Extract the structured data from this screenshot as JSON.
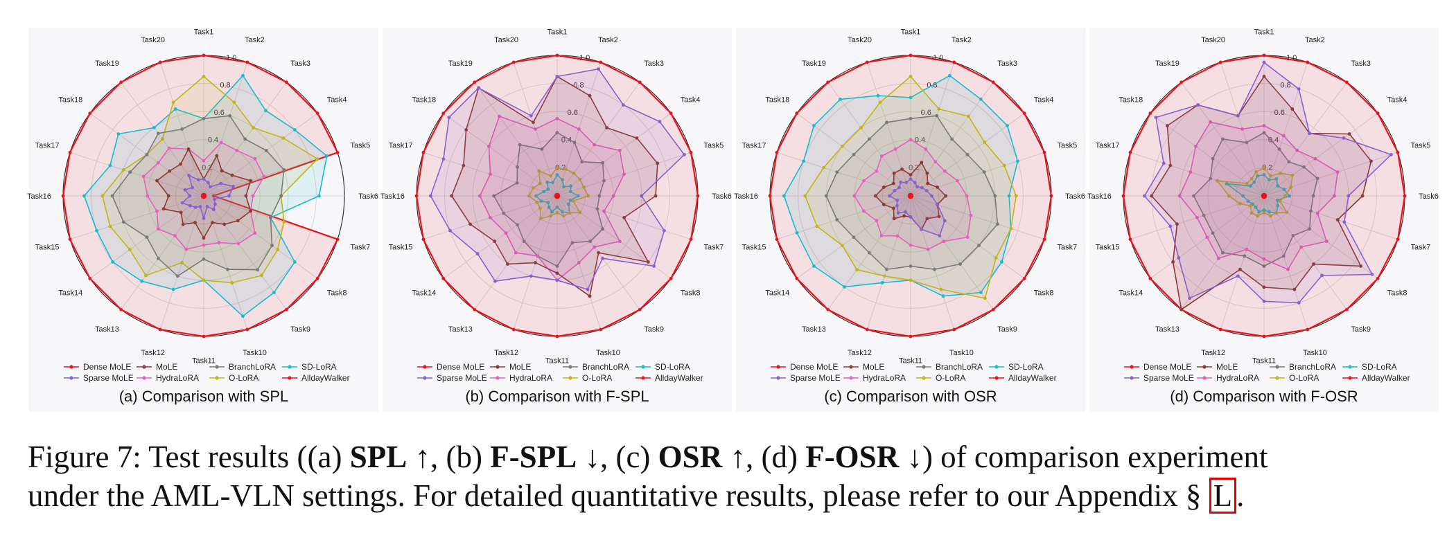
{
  "tasks": [
    "Task1",
    "Task2",
    "Task3",
    "Task4",
    "Task5",
    "Task6",
    "Task7",
    "Task8",
    "Task9",
    "Task10",
    "Task11",
    "Task12",
    "Task13",
    "Task14",
    "Task15",
    "Task16",
    "Task17",
    "Task18",
    "Task19",
    "Task20"
  ],
  "rticks": [
    "0.2",
    "0.4",
    "0.6",
    "0.8",
    "1.0"
  ],
  "colors": {
    "Dense MoLE": "#e8141d",
    "Sparse MoLE": "#8a5fcf",
    "MoLE": "#8b3a34",
    "HydraLoRA": "#e85fc0",
    "BranchLoRA": "#7a7a7a",
    "O-LoRA": "#c2b41c",
    "SD-LoRA": "#18bcd0",
    "AlldayWalker": "#e8141d"
  },
  "legend": [
    "Dense MoLE",
    "MoLE",
    "BranchLoRA",
    "SD-LoRA",
    "Sparse MoLE",
    "HydraLoRA",
    "O-LoRA",
    "AlldayWalker"
  ],
  "chart_data": [
    {
      "type": "radar",
      "title": "(a) Comparison with SPL",
      "categories": [
        "Task1",
        "Task2",
        "Task3",
        "Task4",
        "Task5",
        "Task6",
        "Task7",
        "Task8",
        "Task9",
        "Task10",
        "Task11",
        "Task12",
        "Task13",
        "Task14",
        "Task15",
        "Task16",
        "Task17",
        "Task18",
        "Task19",
        "Task20"
      ],
      "rlim": [
        0,
        1.0
      ],
      "series": [
        {
          "name": "Dense MoLE",
          "values": [
            1.0,
            1.0,
            1.0,
            1.0,
            1.0,
            0.07,
            1.0,
            1.0,
            1.0,
            1.0,
            1.0,
            1.0,
            1.0,
            1.0,
            1.0,
            1.0,
            1.0,
            1.0,
            1.0,
            1.0
          ]
        },
        {
          "name": "Sparse MoLE",
          "values": [
            0.12,
            0.1,
            0.08,
            0.15,
            0.22,
            0.18,
            0.08,
            0.1,
            0.12,
            0.08,
            0.16,
            0.08,
            0.1,
            0.12,
            0.16,
            0.1,
            0.14,
            0.1,
            0.18,
            0.12
          ]
        },
        {
          "name": "MoLE",
          "values": [
            0.12,
            0.3,
            0.22,
            0.25,
            0.35,
            0.3,
            0.35,
            0.3,
            0.25,
            0.2,
            0.3,
            0.2,
            0.25,
            0.2,
            0.3,
            0.25,
            0.35,
            0.3,
            0.28,
            0.35
          ]
        },
        {
          "name": "HydraLoRA",
          "values": [
            0.25,
            0.4,
            0.4,
            0.45,
            0.45,
            0.35,
            0.35,
            0.45,
            0.42,
            0.35,
            0.35,
            0.4,
            0.35,
            0.4,
            0.35,
            0.4,
            0.45,
            0.4,
            0.42,
            0.35
          ]
        },
        {
          "name": "BranchLoRA",
          "values": [
            0.55,
            0.6,
            0.5,
            0.55,
            0.6,
            0.55,
            0.5,
            0.6,
            0.65,
            0.55,
            0.45,
            0.6,
            0.55,
            0.5,
            0.6,
            0.65,
            0.55,
            0.5,
            0.55,
            0.5
          ]
        },
        {
          "name": "O-LoRA",
          "values": [
            0.85,
            0.7,
            0.6,
            0.7,
            0.85,
            0.55,
            0.6,
            0.65,
            0.7,
            0.65,
            0.6,
            0.5,
            0.7,
            0.65,
            0.7,
            0.72,
            0.6,
            0.5,
            0.5,
            0.7
          ]
        },
        {
          "name": "SD-LoRA",
          "values": [
            0.55,
            0.9,
            0.75,
            0.8,
            0.92,
            0.82,
            0.5,
            0.8,
            0.85,
            0.9,
            0.6,
            0.7,
            0.75,
            0.8,
            0.8,
            0.85,
            0.7,
            0.75,
            0.6,
            0.65
          ]
        },
        {
          "name": "AlldayWalker",
          "values": [
            0.01,
            0.01,
            0.01,
            0.01,
            0.01,
            0.01,
            0.01,
            0.01,
            0.01,
            0.01,
            0.01,
            0.01,
            0.01,
            0.01,
            0.01,
            0.01,
            0.01,
            0.01,
            0.01,
            0.01
          ]
        }
      ]
    },
    {
      "type": "radar",
      "title": "(b) Comparison with F-SPL",
      "categories": [
        "Task1",
        "Task2",
        "Task3",
        "Task4",
        "Task5",
        "Task6",
        "Task7",
        "Task8",
        "Task9",
        "Task10",
        "Task11",
        "Task12",
        "Task13",
        "Task14",
        "Task15",
        "Task16",
        "Task17",
        "Task18",
        "Task19",
        "Task20"
      ],
      "rlim": [
        0,
        1.0
      ],
      "series": [
        {
          "name": "Dense MoLE",
          "values": [
            1.0,
            1.0,
            1.0,
            1.0,
            1.0,
            1.0,
            1.0,
            1.0,
            1.0,
            1.0,
            1.0,
            1.0,
            1.0,
            1.0,
            1.0,
            1.0,
            1.0,
            1.0,
            1.0,
            1.0
          ]
        },
        {
          "name": "Sparse MoLE",
          "values": [
            0.85,
            0.95,
            0.8,
            0.9,
            0.95,
            0.6,
            0.8,
            0.85,
            0.55,
            0.7,
            0.6,
            0.6,
            0.75,
            0.7,
            0.8,
            0.9,
            0.85,
            0.95,
            0.95,
            0.6
          ]
        },
        {
          "name": "MoLE",
          "values": [
            0.85,
            0.75,
            0.6,
            0.7,
            0.75,
            0.7,
            0.5,
            0.8,
            0.5,
            0.75,
            0.55,
            0.5,
            0.6,
            0.55,
            0.65,
            0.75,
            0.7,
            0.8,
            0.95,
            0.55
          ]
        },
        {
          "name": "HydraLoRA",
          "values": [
            0.55,
            0.5,
            0.45,
            0.55,
            0.5,
            0.4,
            0.35,
            0.55,
            0.45,
            0.5,
            0.6,
            0.45,
            0.5,
            0.45,
            0.5,
            0.55,
            0.5,
            0.6,
            0.7,
            0.5
          ]
        },
        {
          "name": "BranchLoRA",
          "values": [
            0.45,
            0.4,
            0.3,
            0.4,
            0.35,
            0.3,
            0.3,
            0.4,
            0.4,
            0.35,
            0.5,
            0.45,
            0.4,
            0.35,
            0.4,
            0.45,
            0.3,
            0.35,
            0.45,
            0.35
          ]
        },
        {
          "name": "O-LoRA",
          "values": [
            0.2,
            0.2,
            0.2,
            0.2,
            0.2,
            0.22,
            0.12,
            0.2,
            0.15,
            0.15,
            0.12,
            0.15,
            0.2,
            0.15,
            0.15,
            0.2,
            0.18,
            0.15,
            0.22,
            0.15
          ]
        },
        {
          "name": "SD-LoRA",
          "values": [
            0.15,
            0.12,
            0.08,
            0.12,
            0.1,
            0.15,
            0.1,
            0.1,
            0.15,
            0.12,
            0.08,
            0.12,
            0.1,
            0.08,
            0.12,
            0.15,
            0.1,
            0.08,
            0.12,
            0.1
          ]
        },
        {
          "name": "AlldayWalker",
          "values": [
            0.01,
            0.01,
            0.01,
            0.01,
            0.01,
            0.01,
            0.01,
            0.01,
            0.01,
            0.01,
            0.01,
            0.01,
            0.01,
            0.01,
            0.01,
            0.01,
            0.01,
            0.01,
            0.01,
            0.01
          ]
        }
      ]
    },
    {
      "type": "radar",
      "title": "(c) Comparison with OSR",
      "categories": [
        "Task1",
        "Task2",
        "Task3",
        "Task4",
        "Task5",
        "Task6",
        "Task7",
        "Task8",
        "Task9",
        "Task10",
        "Task11",
        "Task12",
        "Task13",
        "Task14",
        "Task15",
        "Task16",
        "Task17",
        "Task18",
        "Task19",
        "Task20"
      ],
      "rlim": [
        0,
        1.0
      ],
      "series": [
        {
          "name": "Dense MoLE",
          "values": [
            1.0,
            1.0,
            1.0,
            1.0,
            1.0,
            1.0,
            1.0,
            1.0,
            1.0,
            1.0,
            1.0,
            1.0,
            1.0,
            1.0,
            1.0,
            1.0,
            1.0,
            1.0,
            1.0,
            1.0
          ]
        },
        {
          "name": "Sparse MoLE",
          "values": [
            0.12,
            0.1,
            0.08,
            0.1,
            0.12,
            0.15,
            0.2,
            0.3,
            0.35,
            0.25,
            0.15,
            0.12,
            0.15,
            0.12,
            0.1,
            0.15,
            0.12,
            0.1,
            0.12,
            0.1
          ]
        },
        {
          "name": "MoLE",
          "values": [
            0.15,
            0.25,
            0.2,
            0.15,
            0.2,
            0.25,
            0.2,
            0.25,
            0.2,
            0.25,
            0.15,
            0.15,
            0.2,
            0.15,
            0.2,
            0.25,
            0.2,
            0.15,
            0.2,
            0.2
          ]
        },
        {
          "name": "HydraLoRA",
          "values": [
            0.4,
            0.35,
            0.3,
            0.3,
            0.35,
            0.4,
            0.45,
            0.5,
            0.4,
            0.4,
            0.35,
            0.3,
            0.35,
            0.3,
            0.35,
            0.4,
            0.35,
            0.3,
            0.35,
            0.35
          ]
        },
        {
          "name": "BranchLoRA",
          "values": [
            0.55,
            0.6,
            0.5,
            0.5,
            0.55,
            0.6,
            0.65,
            0.6,
            0.6,
            0.55,
            0.5,
            0.55,
            0.5,
            0.5,
            0.55,
            0.6,
            0.55,
            0.5,
            0.5,
            0.55
          ]
        },
        {
          "name": "O-LoRA",
          "values": [
            0.85,
            0.65,
            0.7,
            0.65,
            0.7,
            0.75,
            0.75,
            0.75,
            0.9,
            0.7,
            0.6,
            0.6,
            0.65,
            0.6,
            0.7,
            0.75,
            0.65,
            0.6,
            0.6,
            0.7
          ]
        },
        {
          "name": "SD-LoRA",
          "values": [
            0.7,
            0.9,
            0.85,
            0.85,
            0.8,
            0.7,
            0.75,
            0.8,
            0.85,
            0.75,
            0.6,
            0.65,
            0.8,
            0.85,
            0.85,
            0.9,
            0.8,
            0.85,
            0.85,
            0.75
          ]
        },
        {
          "name": "AlldayWalker",
          "values": [
            0.01,
            0.01,
            0.01,
            0.01,
            0.01,
            0.01,
            0.01,
            0.01,
            0.01,
            0.01,
            0.01,
            0.01,
            0.01,
            0.01,
            0.01,
            0.01,
            0.01,
            0.01,
            0.01,
            0.01
          ]
        }
      ]
    },
    {
      "type": "radar",
      "title": "(d) Comparison with F-OSR",
      "categories": [
        "Task1",
        "Task2",
        "Task3",
        "Task4",
        "Task5",
        "Task6",
        "Task7",
        "Task8",
        "Task9",
        "Task10",
        "Task11",
        "Task12",
        "Task13",
        "Task14",
        "Task15",
        "Task16",
        "Task17",
        "Task18",
        "Task19",
        "Task20"
      ],
      "rlim": [
        0,
        1.0
      ],
      "series": [
        {
          "name": "Dense MoLE",
          "values": [
            1.0,
            1.0,
            1.0,
            1.0,
            1.0,
            1.0,
            1.0,
            1.0,
            1.0,
            1.0,
            1.0,
            1.0,
            1.0,
            1.0,
            1.0,
            1.0,
            1.0,
            1.0,
            1.0,
            1.0
          ]
        },
        {
          "name": "Sparse MoLE",
          "values": [
            0.95,
            0.8,
            0.55,
            0.7,
            0.95,
            0.6,
            0.6,
            0.95,
            0.7,
            0.8,
            0.75,
            0.6,
            0.9,
            0.75,
            0.7,
            0.85,
            0.75,
            0.95,
            0.8,
            0.6
          ]
        },
        {
          "name": "MoLE",
          "values": [
            0.85,
            0.65,
            0.55,
            0.75,
            0.8,
            0.7,
            0.55,
            0.85,
            0.6,
            0.7,
            0.65,
            0.55,
            1.0,
            0.8,
            0.65,
            0.8,
            0.7,
            0.85,
            0.8,
            0.6
          ]
        },
        {
          "name": "HydraLoRA",
          "values": [
            0.5,
            0.45,
            0.4,
            0.45,
            0.55,
            0.5,
            0.4,
            0.55,
            0.45,
            0.55,
            0.45,
            0.4,
            0.55,
            0.5,
            0.5,
            0.6,
            0.55,
            0.6,
            0.65,
            0.5
          ]
        },
        {
          "name": "BranchLoRA",
          "values": [
            0.45,
            0.35,
            0.3,
            0.35,
            0.4,
            0.35,
            0.35,
            0.4,
            0.35,
            0.45,
            0.5,
            0.45,
            0.5,
            0.45,
            0.45,
            0.5,
            0.4,
            0.45,
            0.5,
            0.4
          ]
        },
        {
          "name": "O-LoRA",
          "values": [
            0.2,
            0.15,
            0.2,
            0.25,
            0.2,
            0.15,
            0.12,
            0.2,
            0.15,
            0.15,
            0.12,
            0.15,
            0.15,
            0.12,
            0.18,
            0.25,
            0.35,
            0.15,
            0.15,
            0.18
          ]
        },
        {
          "name": "SD-LoRA",
          "values": [
            0.15,
            0.12,
            0.15,
            0.12,
            0.15,
            0.18,
            0.1,
            0.12,
            0.15,
            0.12,
            0.1,
            0.12,
            0.1,
            0.1,
            0.12,
            0.15,
            0.28,
            0.12,
            0.12,
            0.15
          ]
        },
        {
          "name": "AlldayWalker",
          "values": [
            0.01,
            0.01,
            0.01,
            0.01,
            0.01,
            0.01,
            0.01,
            0.01,
            0.01,
            0.01,
            0.01,
            0.01,
            0.01,
            0.01,
            0.01,
            0.01,
            0.01,
            0.01,
            0.01,
            0.01
          ]
        }
      ]
    }
  ],
  "caption": {
    "prefix": "Figure 7: Test results ((a) ",
    "m1": "SPL",
    "a1": " ↑, (b) ",
    "m2": "F-SPL",
    "a2": " ↓, (c) ",
    "m3": "OSR",
    "a3": " ↑, (d) ",
    "m4": "F-OSR",
    "a4": " ↓) of comparison experiment",
    "line2": "under the AML-VLN settings. For detailed quantitative results, please refer to our Appendix § ",
    "ref": "L",
    "end": "."
  }
}
